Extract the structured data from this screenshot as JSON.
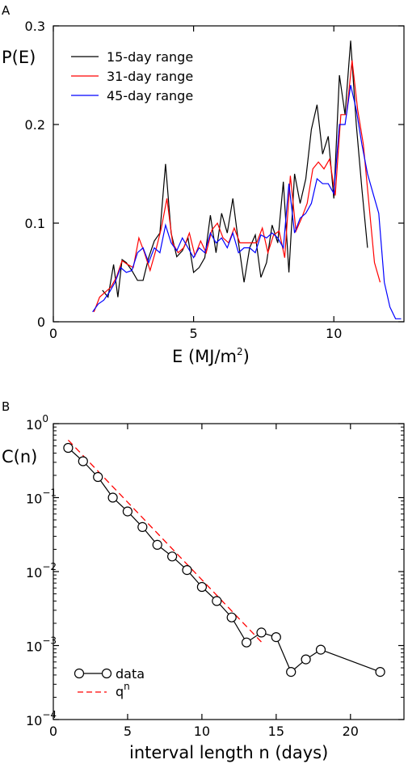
{
  "chart_data": [
    {
      "panel_label": "A",
      "type": "line",
      "xlabel": "E (MJ/m",
      "xlabel_sup": "2",
      "xlabel_end": ")",
      "ylabel": "P(E)",
      "xlim": [
        0,
        12.5
      ],
      "ylim": [
        0,
        0.3
      ],
      "xticks": [
        0,
        5,
        10
      ],
      "xtick_labels": [
        "0",
        "5",
        "10"
      ],
      "yticks": [
        0,
        0.1,
        0.2,
        0.3
      ],
      "ytick_labels": [
        "0",
        "0.1",
        "0.2",
        "0.3"
      ],
      "legend_position": "top-left",
      "series": [
        {
          "name": "15-day range",
          "color": "#000000",
          "x": [
            1.75,
            1.95,
            2.15,
            2.3,
            2.45,
            2.6,
            2.8,
            3.0,
            3.2,
            3.4,
            3.6,
            3.8,
            4.0,
            4.2,
            4.4,
            4.6,
            4.8,
            5.0,
            5.2,
            5.4,
            5.6,
            5.8,
            6.0,
            6.2,
            6.4,
            6.6,
            6.8,
            7.0,
            7.2,
            7.4,
            7.6,
            7.8,
            8.0,
            8.2,
            8.4,
            8.6,
            8.8,
            9.0,
            9.2,
            9.4,
            9.6,
            9.8,
            10.0,
            10.2,
            10.4,
            10.6,
            10.8,
            11.0,
            11.2
          ],
          "y": [
            0.032,
            0.025,
            0.058,
            0.025,
            0.063,
            0.06,
            0.052,
            0.042,
            0.042,
            0.065,
            0.082,
            0.09,
            0.16,
            0.09,
            0.066,
            0.072,
            0.085,
            0.05,
            0.055,
            0.065,
            0.108,
            0.07,
            0.11,
            0.09,
            0.125,
            0.08,
            0.04,
            0.075,
            0.088,
            0.045,
            0.06,
            0.098,
            0.08,
            0.142,
            0.05,
            0.15,
            0.12,
            0.145,
            0.195,
            0.22,
            0.17,
            0.188,
            0.125,
            0.25,
            0.21,
            0.285,
            0.2,
            0.135,
            0.075
          ]
        },
        {
          "name": "31-day range",
          "color": "#ff0000",
          "x": [
            1.45,
            1.65,
            1.85,
            2.05,
            2.25,
            2.45,
            2.65,
            2.85,
            3.05,
            3.25,
            3.45,
            3.65,
            3.85,
            4.05,
            4.25,
            4.45,
            4.65,
            4.85,
            5.05,
            5.25,
            5.45,
            5.65,
            5.85,
            6.05,
            6.25,
            6.45,
            6.65,
            6.85,
            7.05,
            7.25,
            7.45,
            7.65,
            7.85,
            8.05,
            8.25,
            8.45,
            8.65,
            8.85,
            9.05,
            9.25,
            9.45,
            9.65,
            9.85,
            10.05,
            10.25,
            10.45,
            10.65,
            10.85,
            11.05,
            11.25,
            11.45,
            11.65
          ],
          "y": [
            0.01,
            0.025,
            0.03,
            0.035,
            0.045,
            0.062,
            0.058,
            0.055,
            0.085,
            0.07,
            0.052,
            0.072,
            0.095,
            0.125,
            0.08,
            0.07,
            0.075,
            0.09,
            0.067,
            0.082,
            0.07,
            0.093,
            0.1,
            0.085,
            0.08,
            0.095,
            0.08,
            0.08,
            0.08,
            0.08,
            0.095,
            0.07,
            0.088,
            0.092,
            0.065,
            0.148,
            0.092,
            0.105,
            0.12,
            0.155,
            0.162,
            0.155,
            0.165,
            0.128,
            0.21,
            0.21,
            0.265,
            0.215,
            0.18,
            0.12,
            0.06,
            0.04
          ]
        },
        {
          "name": "45-day range",
          "color": "#0000ff",
          "x": [
            1.4,
            1.6,
            1.8,
            2.0,
            2.2,
            2.4,
            2.6,
            2.8,
            3.0,
            3.2,
            3.4,
            3.6,
            3.8,
            4.0,
            4.2,
            4.4,
            4.6,
            4.8,
            5.0,
            5.2,
            5.4,
            5.6,
            5.8,
            6.0,
            6.2,
            6.4,
            6.6,
            6.8,
            7.0,
            7.2,
            7.4,
            7.6,
            7.8,
            8.0,
            8.2,
            8.4,
            8.6,
            8.8,
            9.0,
            9.2,
            9.4,
            9.6,
            9.8,
            10.0,
            10.2,
            10.4,
            10.6,
            10.8,
            11.0,
            11.2,
            11.4,
            11.6,
            11.8,
            12.0,
            12.2,
            12.4
          ],
          "y": [
            0.01,
            0.018,
            0.022,
            0.03,
            0.04,
            0.055,
            0.05,
            0.052,
            0.07,
            0.075,
            0.06,
            0.075,
            0.07,
            0.098,
            0.08,
            0.072,
            0.085,
            0.075,
            0.065,
            0.075,
            0.07,
            0.09,
            0.08,
            0.085,
            0.075,
            0.09,
            0.07,
            0.075,
            0.075,
            0.07,
            0.088,
            0.085,
            0.09,
            0.085,
            0.075,
            0.14,
            0.09,
            0.105,
            0.11,
            0.12,
            0.145,
            0.14,
            0.14,
            0.13,
            0.2,
            0.2,
            0.24,
            0.215,
            0.18,
            0.15,
            0.13,
            0.11,
            0.04,
            0.015,
            0.003,
            0.003
          ]
        }
      ]
    },
    {
      "panel_label": "B",
      "type": "line",
      "xlabel": "interval length n (days)",
      "ylabel": "C(n)",
      "xlim": [
        0,
        23.6
      ],
      "ylim": [
        0.0001,
        1
      ],
      "yscale": "log",
      "xticks": [
        0,
        5,
        10,
        15,
        20
      ],
      "xtick_labels": [
        "0",
        "5",
        "10",
        "15",
        "20"
      ],
      "yticks": [
        {
          "value": 1,
          "base": "10",
          "exp": "0"
        },
        {
          "value": 0.1,
          "base": "10",
          "exp": "−1"
        },
        {
          "value": 0.01,
          "base": "10",
          "exp": "−2"
        },
        {
          "value": 0.001,
          "base": "10",
          "exp": "−3"
        },
        {
          "value": 0.0001,
          "base": "10",
          "exp": "−4"
        }
      ],
      "legend_position": "bottom-left",
      "series": [
        {
          "name": "data",
          "color": "#000000",
          "marker": "open-circle",
          "x": [
            1,
            2,
            3,
            4,
            5,
            6,
            7,
            8,
            9,
            10,
            11,
            12,
            13,
            14,
            15,
            16,
            17,
            18,
            22
          ],
          "y": [
            0.47,
            0.31,
            0.19,
            0.1,
            0.065,
            0.04,
            0.023,
            0.016,
            0.0105,
            0.0062,
            0.004,
            0.0024,
            0.0011,
            0.0015,
            0.0013,
            0.00044,
            0.00065,
            0.00088,
            0.00044
          ]
        }
      ],
      "fit": {
        "name": "q",
        "name_sup": "n",
        "color": "#ff0000",
        "style": "dashed",
        "x": [
          1,
          14
        ],
        "y": [
          0.6,
          0.00112
        ]
      }
    }
  ]
}
